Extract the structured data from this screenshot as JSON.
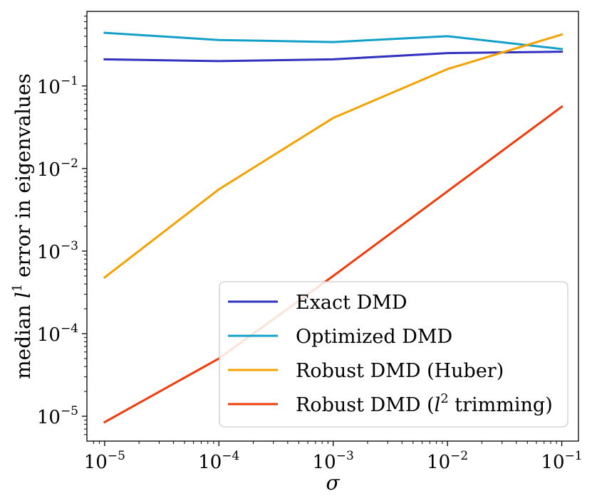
{
  "chart_data": {
    "type": "line",
    "title": "",
    "xscale": "log",
    "yscale": "log",
    "xlabel": "σ",
    "ylabel": "median l¹ error in eigenvalues",
    "xlim": [
      7e-06,
      0.14
    ],
    "ylim": [
      5e-06,
      0.8
    ],
    "x": [
      1e-05,
      0.0001,
      0.001,
      0.01,
      0.1
    ],
    "x_ticks": [
      {
        "value": 1e-05,
        "base": "10",
        "exp": "−5"
      },
      {
        "value": 0.0001,
        "base": "10",
        "exp": "−4"
      },
      {
        "value": 0.001,
        "base": "10",
        "exp": "−3"
      },
      {
        "value": 0.01,
        "base": "10",
        "exp": "−2"
      },
      {
        "value": 0.1,
        "base": "10",
        "exp": "−1"
      }
    ],
    "y_ticks": [
      {
        "value": 1e-05,
        "base": "10",
        "exp": "−5"
      },
      {
        "value": 0.0001,
        "base": "10",
        "exp": "−4"
      },
      {
        "value": 0.001,
        "base": "10",
        "exp": "−3"
      },
      {
        "value": 0.01,
        "base": "10",
        "exp": "−2"
      },
      {
        "value": 0.1,
        "base": "10",
        "exp": "−1"
      }
    ],
    "series": [
      {
        "name": "Exact DMD",
        "color": "#3232c0",
        "values": [
          0.21,
          0.2,
          0.21,
          0.25,
          0.26
        ]
      },
      {
        "name": "Optimized DMD",
        "color": "#12a0c8",
        "values": [
          0.44,
          0.36,
          0.34,
          0.4,
          0.28
        ]
      },
      {
        "name": "Robust DMD (Huber)",
        "color": "#f4a200",
        "values": [
          0.00048,
          0.0056,
          0.041,
          0.16,
          0.42
        ]
      },
      {
        "name": "Robust DMD (l² trimming)",
        "color": "#f03c0a",
        "values": [
          8.5e-06,
          5e-05,
          0.0005,
          0.0053,
          0.056
        ]
      }
    ],
    "legend": {
      "position": "lower-right",
      "entries": [
        {
          "prefix": "Exact DMD",
          "italic": "",
          "sup": "",
          "suffix": ""
        },
        {
          "prefix": "Optimized DMD",
          "italic": "",
          "sup": "",
          "suffix": ""
        },
        {
          "prefix": "Robust DMD (Huber)",
          "italic": "",
          "sup": "",
          "suffix": ""
        },
        {
          "prefix": "Robust DMD (",
          "italic": "l",
          "sup": "2",
          "suffix": " trimming)"
        }
      ]
    },
    "ylabel_parts": {
      "prefix": "median ",
      "italic": "l",
      "sup": "1",
      "suffix": " error in eigenvalues"
    },
    "grid": false
  }
}
